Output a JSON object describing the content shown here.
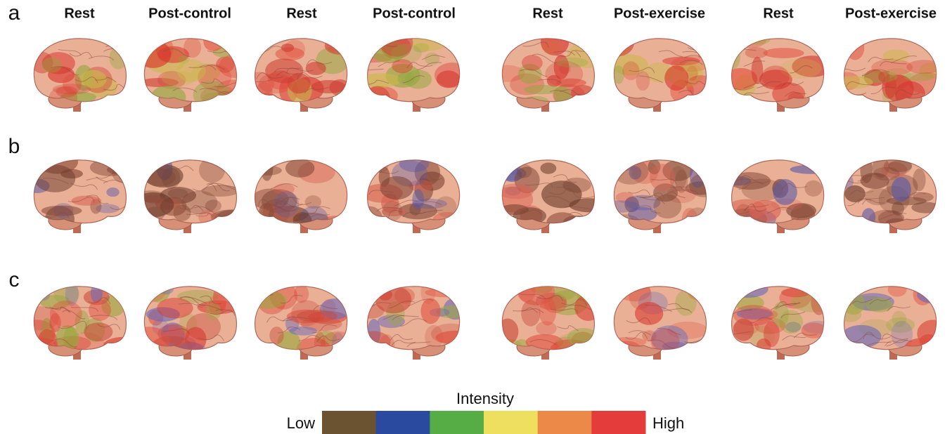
{
  "panels": {
    "headers": [
      "Rest",
      "Post-control",
      "Rest",
      "Post-control",
      "Rest",
      "Post-exercise",
      "Rest",
      "Post-exercise"
    ],
    "rows": [
      {
        "label": "a"
      },
      {
        "label": "b"
      },
      {
        "label": "c"
      }
    ]
  },
  "colorbar": {
    "title": "Intensity",
    "low_label": "Low",
    "high_label": "High",
    "colors": [
      "#6b5230",
      "#2a4aa0",
      "#56ac45",
      "#efdf5f",
      "#ec8848",
      "#e43b3b"
    ]
  }
}
